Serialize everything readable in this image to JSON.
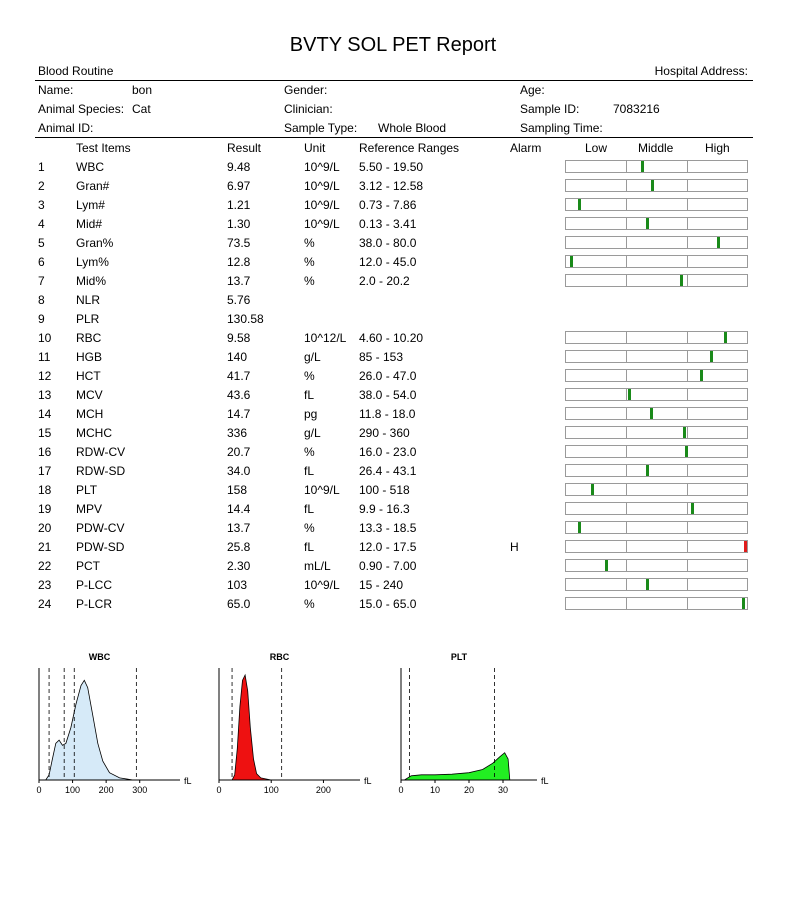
{
  "report": {
    "title": "BVTY SOL PET Report",
    "section": "Blood Routine",
    "hospital_address_label": "Hospital Address:"
  },
  "patient": {
    "name_label": "Name:",
    "name_value": "bon",
    "gender_label": "Gender:",
    "age_label": "Age:",
    "species_label": "Animal Species:",
    "species_value": "Cat",
    "clinician_label": "Clinician:",
    "sample_id_label": "Sample ID:",
    "sample_id_value": "7083216",
    "animal_id_label": "Animal ID:",
    "sample_type_label": "Sample Type:",
    "sample_type_value": "Whole Blood",
    "sampling_time_label": "Sampling Time:"
  },
  "table": {
    "headers": {
      "items": "Test Items",
      "result": "Result",
      "unit": "Unit",
      "ranges": "Reference Ranges",
      "alarm": "Alarm",
      "low": "Low",
      "middle": "Middle",
      "high": "High"
    },
    "rows": [
      {
        "no": "1",
        "item": "WBC",
        "result": "9.48",
        "unit": "10^9/L",
        "range": "5.50 - 19.50",
        "alarm": "",
        "level": 0.42
      },
      {
        "no": "2",
        "item": "Gran#",
        "result": "6.97",
        "unit": "10^9/L",
        "range": "3.12 - 12.58",
        "alarm": "",
        "level": 0.48
      },
      {
        "no": "3",
        "item": "Lym#",
        "result": "1.21",
        "unit": "10^9/L",
        "range": "0.73 - 7.86",
        "alarm": "",
        "level": 0.07
      },
      {
        "no": "4",
        "item": "Mid#",
        "result": "1.30",
        "unit": "10^9/L",
        "range": "0.13 - 3.41",
        "alarm": "",
        "level": 0.45
      },
      {
        "no": "5",
        "item": "Gran%",
        "result": "73.5",
        "unit": "%",
        "range": "38.0 - 80.0",
        "alarm": "",
        "level": 0.85
      },
      {
        "no": "6",
        "item": "Lym%",
        "result": "12.8",
        "unit": "%",
        "range": "12.0 - 45.0",
        "alarm": "",
        "level": 0.02
      },
      {
        "no": "7",
        "item": "Mid%",
        "result": "13.7",
        "unit": "%",
        "range": "2.0 - 20.2",
        "alarm": "",
        "level": 0.64
      },
      {
        "no": "8",
        "item": "NLR",
        "result": "5.76",
        "unit": "",
        "range": "",
        "alarm": "",
        "level": null
      },
      {
        "no": "9",
        "item": "PLR",
        "result": "130.58",
        "unit": "",
        "range": "",
        "alarm": "",
        "level": null
      },
      {
        "no": "10",
        "item": "RBC",
        "result": "9.58",
        "unit": "10^12/L",
        "range": "4.60 - 10.20",
        "alarm": "",
        "level": 0.89
      },
      {
        "no": "11",
        "item": "HGB",
        "result": "140",
        "unit": "g/L",
        "range": "85 - 153",
        "alarm": "",
        "level": 0.81
      },
      {
        "no": "12",
        "item": "HCT",
        "result": "41.7",
        "unit": "%",
        "range": "26.0 - 47.0",
        "alarm": "",
        "level": 0.75
      },
      {
        "no": "13",
        "item": "MCV",
        "result": "43.6",
        "unit": "fL",
        "range": "38.0 - 54.0",
        "alarm": "",
        "level": 0.35
      },
      {
        "no": "14",
        "item": "MCH",
        "result": "14.7",
        "unit": "pg",
        "range": "11.8 - 18.0",
        "alarm": "",
        "level": 0.47
      },
      {
        "no": "15",
        "item": "MCHC",
        "result": "336",
        "unit": "g/L",
        "range": "290 - 360",
        "alarm": "",
        "level": 0.66
      },
      {
        "no": "16",
        "item": "RDW-CV",
        "result": "20.7",
        "unit": "%",
        "range": "16.0 - 23.0",
        "alarm": "",
        "level": 0.67
      },
      {
        "no": "17",
        "item": "RDW-SD",
        "result": "34.0",
        "unit": "fL",
        "range": "26.4 - 43.1",
        "alarm": "",
        "level": 0.45
      },
      {
        "no": "18",
        "item": "PLT",
        "result": "158",
        "unit": "10^9/L",
        "range": "100 - 518",
        "alarm": "",
        "level": 0.14
      },
      {
        "no": "19",
        "item": "MPV",
        "result": "14.4",
        "unit": "fL",
        "range": "9.9 - 16.3",
        "alarm": "",
        "level": 0.7
      },
      {
        "no": "20",
        "item": "PDW-CV",
        "result": "13.7",
        "unit": "%",
        "range": "13.3 - 18.5",
        "alarm": "",
        "level": 0.07
      },
      {
        "no": "21",
        "item": "PDW-SD",
        "result": "25.8",
        "unit": "fL",
        "range": "12.0 - 17.5",
        "alarm": "H",
        "level": 1.0
      },
      {
        "no": "22",
        "item": "PCT",
        "result": "2.30",
        "unit": "mL/L",
        "range": "0.90 - 7.00",
        "alarm": "",
        "level": 0.22
      },
      {
        "no": "23",
        "item": "P-LCC",
        "result": "103",
        "unit": "10^9/L",
        "range": "15 - 240",
        "alarm": "",
        "level": 0.45
      },
      {
        "no": "24",
        "item": "P-LCR",
        "result": "65.0",
        "unit": "%",
        "range": "15.0 - 65.0",
        "alarm": "",
        "level": 0.99
      }
    ]
  },
  "histograms": [
    {
      "title": "WBC",
      "unit": "fL",
      "color": "#d6eaf8",
      "ticks": [
        "0",
        "100",
        "200",
        "300"
      ],
      "tick_values": [
        0,
        100,
        200,
        300
      ],
      "x_max": 420,
      "dashed": [
        30,
        75,
        105,
        290
      ]
    },
    {
      "title": "RBC",
      "unit": "fL",
      "color": "#ee1111",
      "ticks": [
        "0",
        "100",
        "200"
      ],
      "tick_values": [
        0,
        100,
        200
      ],
      "x_max": 270,
      "dashed": [
        25,
        120
      ]
    },
    {
      "title": "PLT",
      "unit": "fL",
      "color": "#22ee22",
      "ticks": [
        "0",
        "10",
        "20",
        "30"
      ],
      "tick_values": [
        0,
        10,
        20,
        30
      ],
      "x_max": 40,
      "dashed": [
        2.5,
        27.5
      ]
    }
  ],
  "colors": {
    "marker_normal": "#1a8a1a",
    "marker_high": "#e01b1b"
  }
}
